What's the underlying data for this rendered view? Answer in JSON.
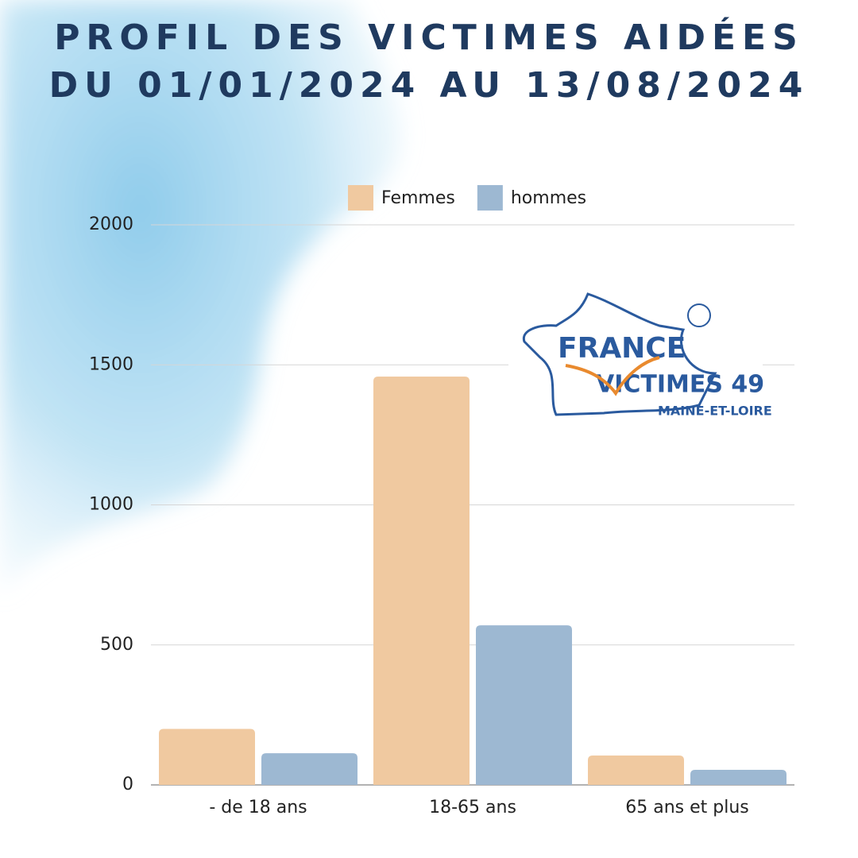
{
  "chart_data": {
    "type": "bar",
    "title": "PROFIL DES VICTIMES AIDÉES",
    "subtitle": "DU 01/01/2024 AU 13/08/2024",
    "categories": [
      "- de 18 ans",
      "18-65 ans",
      "65 ans et plus"
    ],
    "series": [
      {
        "name": "Femmes",
        "color": "#f0c9a0",
        "values": [
          200,
          1458,
          105
        ]
      },
      {
        "name": "hommes",
        "color": "#9db8d2",
        "values": [
          113,
          570,
          54
        ]
      }
    ],
    "ylim": [
      0,
      2000
    ],
    "yticks": [
      0,
      500,
      1000,
      1500,
      2000
    ],
    "grid": true,
    "legend": "top",
    "annotations": [
      "FRANCE",
      "VICTIMES 49",
      "MAINE-ET-LOIRE"
    ]
  }
}
